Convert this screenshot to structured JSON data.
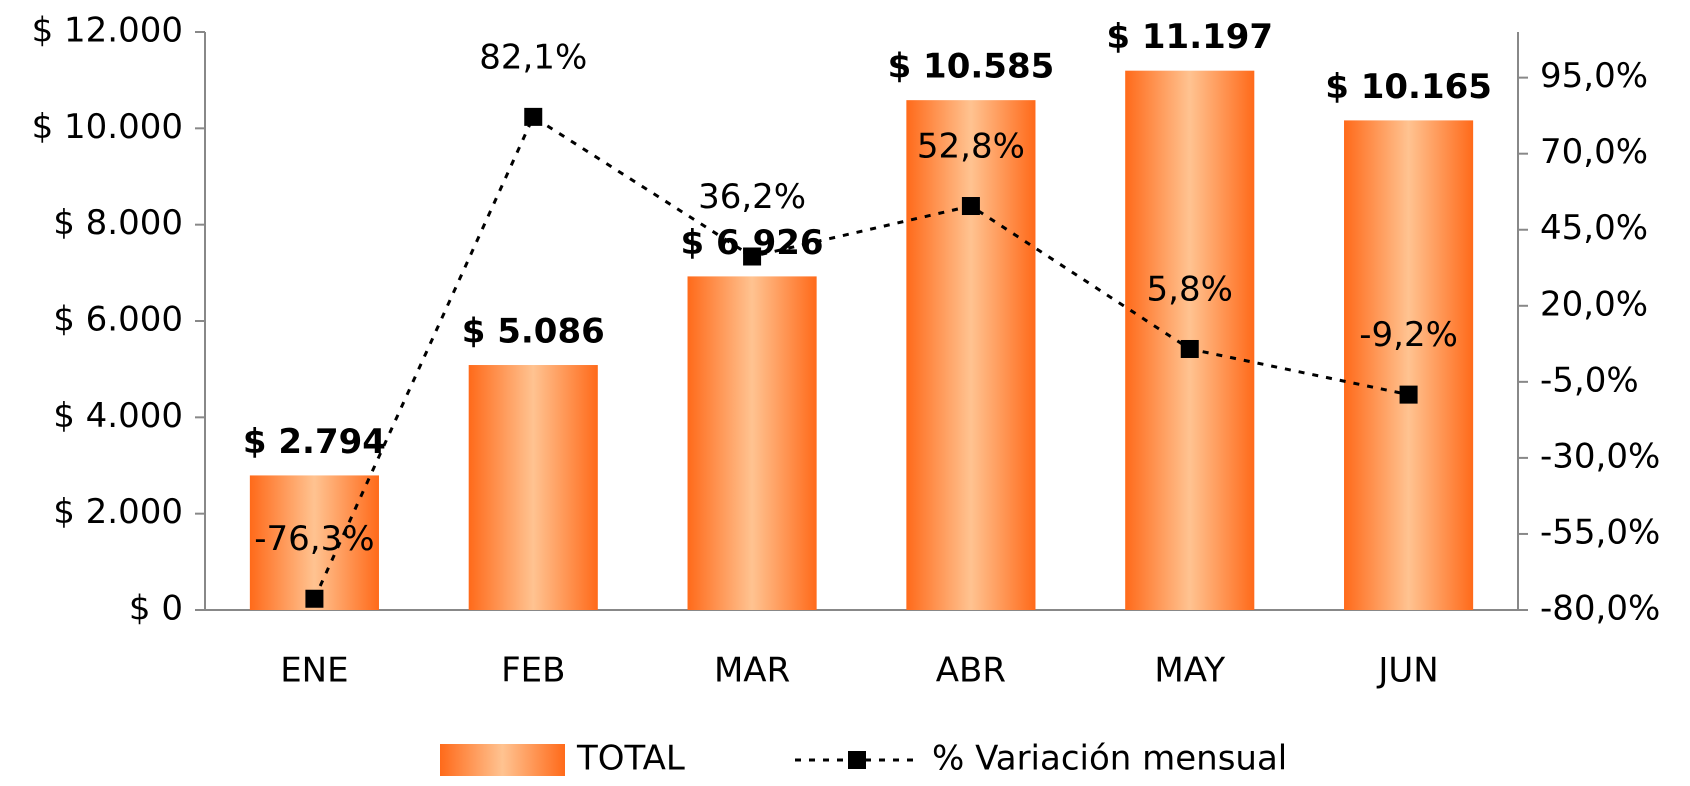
{
  "chart_data": {
    "type": "bar",
    "categories": [
      "ENE",
      "FEB",
      "MAR",
      "ABR",
      "MAY",
      "JUN"
    ],
    "series": [
      {
        "name": "TOTAL",
        "type": "bar",
        "color": "#ff6a1a",
        "values": [
          2794,
          5086,
          6926,
          10585,
          11197,
          10165
        ],
        "value_labels": [
          "$ 2.794",
          "$ 5.086",
          "$ 6.926",
          "$ 10.585",
          "$ 11.197",
          "$ 10.165"
        ]
      },
      {
        "name": "% Variación mensual",
        "type": "line",
        "axis": "y2",
        "color": "#000000",
        "values": [
          -76.3,
          82.1,
          36.2,
          52.8,
          5.8,
          -9.2
        ],
        "value_labels": [
          "-76,3%",
          "82,1%",
          "36,2%",
          "52,8%",
          "5,8%",
          "-9,2%"
        ]
      }
    ],
    "ylim": [
      0,
      12000
    ],
    "yticks": [
      {
        "value": 0,
        "label": "$ 0"
      },
      {
        "value": 2000,
        "label": "$ 2.000"
      },
      {
        "value": 4000,
        "label": "$ 4.000"
      },
      {
        "value": 6000,
        "label": "$ 6.000"
      },
      {
        "value": 8000,
        "label": "$ 8.000"
      },
      {
        "value": 10000,
        "label": "$ 10.000"
      },
      {
        "value": 12000,
        "label": "$ 12.000"
      }
    ],
    "y2lim": [
      -80,
      110
    ],
    "y2ticks": [
      {
        "value": -80,
        "label": "-80,0%"
      },
      {
        "value": -55,
        "label": "-55,0%"
      },
      {
        "value": -30,
        "label": "-30,0%"
      },
      {
        "value": -5,
        "label": "-5,0%"
      },
      {
        "value": 20,
        "label": "20,0%"
      },
      {
        "value": 45,
        "label": "45,0%"
      },
      {
        "value": 70,
        "label": "70,0%"
      },
      {
        "value": 95,
        "label": "95,0%"
      }
    ],
    "legend": "bottom"
  }
}
